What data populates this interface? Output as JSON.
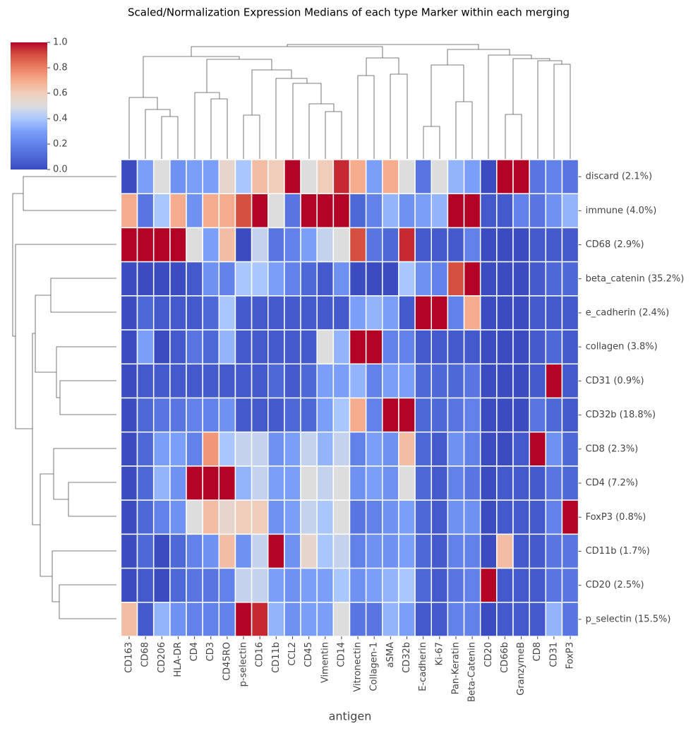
{
  "chart_data": {
    "type": "heatmap",
    "title": "Scaled/Normalization Expression Medians of each type Marker within each merging",
    "xlabel": "antigen",
    "categories": [
      "CD163",
      "CD68",
      "CD206",
      "HLA-DR",
      "CD4",
      "CD3",
      "CD45RO",
      "p-selectin",
      "CD16",
      "CD11b",
      "CCL2",
      "CD45",
      "Vimentin",
      "CD14",
      "Vitronectin",
      "Collagen-1",
      "aSMA",
      "CD32b",
      "E-cadherin",
      "Ki-67",
      "Pan-Keratin",
      "Beta-Catenin",
      "CD20",
      "CD66b",
      "GranzymeB",
      "CD8",
      "CD31",
      "FoxP3"
    ],
    "rows": [
      "discard (2.1%)",
      "immune (4.0%)",
      "CD68 (2.9%)",
      "beta_catenin (35.2%)",
      "e_cadherin (2.4%)",
      "collagen (3.8%)",
      "CD31 (0.9%)",
      "CD32b (18.8%)",
      "CD8 (2.3%)",
      "CD4 (7.2%)",
      "FoxP3 (0.8%)",
      "CD11b (1.7%)",
      "CD20 (2.5%)",
      "p_selectin (15.5%)"
    ],
    "values": [
      [
        0.0,
        0.3,
        0.5,
        0.25,
        0.3,
        0.3,
        0.55,
        0.4,
        0.65,
        0.6,
        1.0,
        0.5,
        0.6,
        0.95,
        0.7,
        0.3,
        0.7,
        0.5,
        0.15,
        0.5,
        0.35,
        0.3,
        0.0,
        1.0,
        1.0,
        0.15,
        0.2,
        0.15
      ],
      [
        0.7,
        0.15,
        0.4,
        0.7,
        0.25,
        0.7,
        0.7,
        0.9,
        1.0,
        0.5,
        0.15,
        1.0,
        1.0,
        1.0,
        0.1,
        0.2,
        0.35,
        0.25,
        0.3,
        0.35,
        1.0,
        1.0,
        0.05,
        0.05,
        0.2,
        0.15,
        0.25,
        0.35
      ],
      [
        1.0,
        1.0,
        1.0,
        1.0,
        0.5,
        0.3,
        0.65,
        0.0,
        0.45,
        0.15,
        0.2,
        0.3,
        0.45,
        0.5,
        0.9,
        0.15,
        0.1,
        0.95,
        0.05,
        0.05,
        0.05,
        0.2,
        0.0,
        0.0,
        0.0,
        0.05,
        0.05,
        0.05
      ],
      [
        0.0,
        0.0,
        0.0,
        0.0,
        0.05,
        0.25,
        0.2,
        0.4,
        0.4,
        0.3,
        0.2,
        0.1,
        0.05,
        0.25,
        0.0,
        0.0,
        0.0,
        0.4,
        0.25,
        0.2,
        0.9,
        1.0,
        0.0,
        0.0,
        0.0,
        0.05,
        0.1,
        0.1
      ],
      [
        0.0,
        0.1,
        0.05,
        0.05,
        0.05,
        0.1,
        0.4,
        0.05,
        0.05,
        0.05,
        0.05,
        0.05,
        0.05,
        0.05,
        0.3,
        0.35,
        0.3,
        0.05,
        1.0,
        1.0,
        0.2,
        0.7,
        0.0,
        0.0,
        0.0,
        0.05,
        0.05,
        0.05
      ],
      [
        0.0,
        0.3,
        0.0,
        0.05,
        0.15,
        0.1,
        0.35,
        0.05,
        0.05,
        0.05,
        0.05,
        0.05,
        0.5,
        0.35,
        1.0,
        1.0,
        0.2,
        0.2,
        0.05,
        0.05,
        0.05,
        0.05,
        0.0,
        0.0,
        0.0,
        0.05,
        0.1,
        0.05
      ],
      [
        0.0,
        0.05,
        0.05,
        0.05,
        0.05,
        0.05,
        0.05,
        0.05,
        0.05,
        0.1,
        0.05,
        0.1,
        0.3,
        0.3,
        0.35,
        0.2,
        0.3,
        0.3,
        0.1,
        0.1,
        0.1,
        0.15,
        0.0,
        0.0,
        0.0,
        0.05,
        1.0,
        0.05
      ],
      [
        0.0,
        0.1,
        0.15,
        0.15,
        0.2,
        0.2,
        0.25,
        0.05,
        0.05,
        0.05,
        0.1,
        0.1,
        0.3,
        0.4,
        0.7,
        0.2,
        1.0,
        1.0,
        0.1,
        0.1,
        0.15,
        0.2,
        0.0,
        0.0,
        0.0,
        0.15,
        0.1,
        0.05
      ],
      [
        0.0,
        0.1,
        0.3,
        0.3,
        0.2,
        0.75,
        0.4,
        0.45,
        0.45,
        0.25,
        0.3,
        0.45,
        0.35,
        0.45,
        0.2,
        0.3,
        0.25,
        0.65,
        0.1,
        0.05,
        0.25,
        0.2,
        0.0,
        0.0,
        0.05,
        1.0,
        0.25,
        0.1
      ],
      [
        0.0,
        0.1,
        0.35,
        0.25,
        1.0,
        1.0,
        1.0,
        0.35,
        0.45,
        0.3,
        0.3,
        0.5,
        0.45,
        0.5,
        0.25,
        0.3,
        0.25,
        0.5,
        0.1,
        0.05,
        0.2,
        0.15,
        0.0,
        0.05,
        0.05,
        0.05,
        0.15,
        0.1
      ],
      [
        0.0,
        0.1,
        0.2,
        0.25,
        0.5,
        0.65,
        0.55,
        0.6,
        0.6,
        0.25,
        0.3,
        0.45,
        0.4,
        0.5,
        0.15,
        0.2,
        0.25,
        0.3,
        0.1,
        0.05,
        0.25,
        0.25,
        0.0,
        0.05,
        0.05,
        0.05,
        0.2,
        1.0
      ],
      [
        0.0,
        0.1,
        0.0,
        0.1,
        0.2,
        0.25,
        0.65,
        0.25,
        0.45,
        1.0,
        0.25,
        0.55,
        0.4,
        0.45,
        0.2,
        0.25,
        0.25,
        0.3,
        0.1,
        0.05,
        0.2,
        0.2,
        0.0,
        0.65,
        0.05,
        0.05,
        0.15,
        0.15
      ],
      [
        0.0,
        0.05,
        0.0,
        0.1,
        0.15,
        0.15,
        0.2,
        0.45,
        0.45,
        0.3,
        0.25,
        0.3,
        0.3,
        0.4,
        0.25,
        0.3,
        0.35,
        0.4,
        0.1,
        0.05,
        0.15,
        0.2,
        1.0,
        0.05,
        0.05,
        0.05,
        0.15,
        0.15
      ],
      [
        0.65,
        0.05,
        0.35,
        0.25,
        0.2,
        0.2,
        0.2,
        1.0,
        0.95,
        0.35,
        0.25,
        0.3,
        0.3,
        0.5,
        0.15,
        0.15,
        0.35,
        0.3,
        0.05,
        0.05,
        0.2,
        0.2,
        0.0,
        0.05,
        0.05,
        0.05,
        0.35,
        0.15
      ]
    ],
    "colormap": [
      "#3b4cc0",
      "#4d68d7",
      "#6282ea",
      "#7b9ff9",
      "#aac7fd",
      "#dddddd",
      "#f0cdbb",
      "#f5ac8e",
      "#ea7f63",
      "#d55040",
      "#b40426"
    ],
    "clim": [
      0,
      1
    ],
    "cticks": [
      {
        "value": 0,
        "label": "0.0"
      },
      0.2,
      0.4,
      0.6,
      0.8,
      {
        "value": 1,
        "label": "1.0"
      }
    ]
  }
}
